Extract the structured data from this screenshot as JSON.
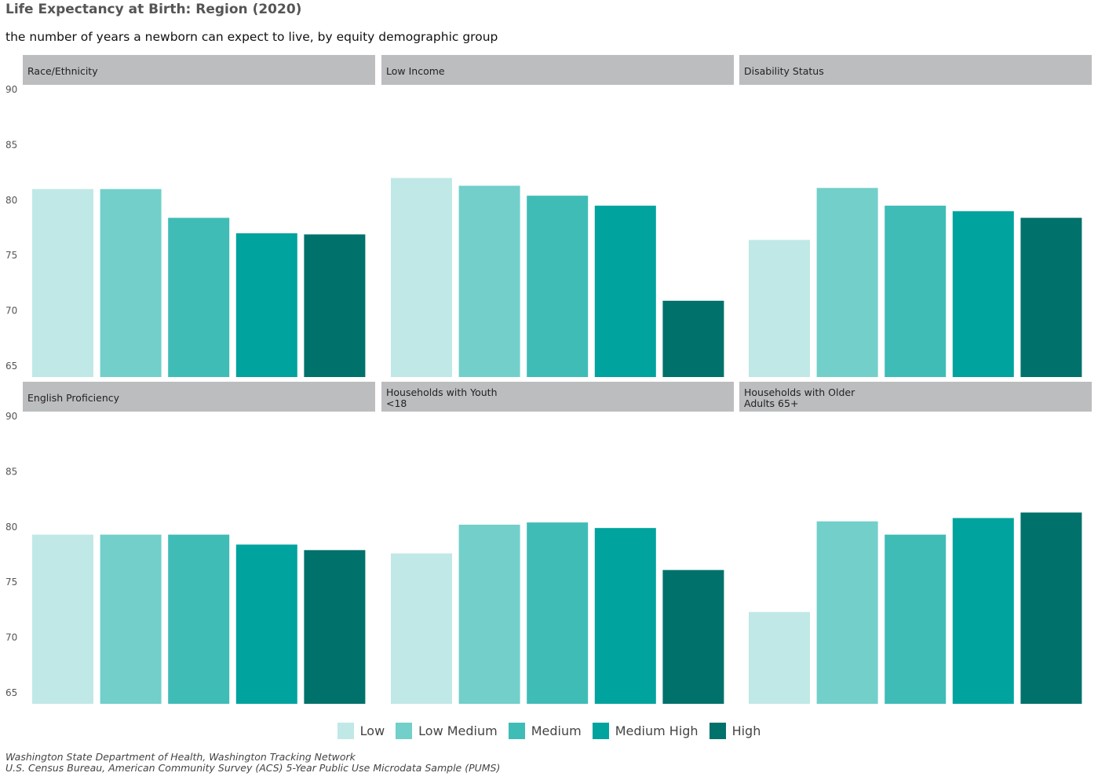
{
  "title": "Life Expectancy at Birth: Region (2020)",
  "subtitle": "the number of years a newborn can expect to live, by equity demographic group",
  "captions": [
    "Washington State Department of Health, Washington Tracking Network",
    "U.S. Census Bureau, American Community Survey (ACS) 5-Year Public Use Microdata Sample (PUMS)"
  ],
  "colors": {
    "Low": "#c0e8e6",
    "Low Medium": "#72cfca",
    "Medium": "#40bcb7",
    "Medium High": "#00a39e",
    "High": "#00716b",
    "strip": "#bcbdbf"
  },
  "chart_data": {
    "type": "bar",
    "categories": [
      "Low",
      "Low Medium",
      "Medium",
      "Medium High",
      "High"
    ],
    "ylim": [
      64,
      90
    ],
    "yticks": [
      65,
      70,
      75,
      80,
      85,
      90
    ],
    "legend": "bottom",
    "grid": false,
    "panels": [
      {
        "label": "Race/Ethnicity",
        "values": [
          81.0,
          81.0,
          78.4,
          77.0,
          76.9
        ]
      },
      {
        "label": "Low Income",
        "values": [
          82.0,
          81.3,
          80.4,
          79.5,
          70.9
        ]
      },
      {
        "label": "Disability Status",
        "values": [
          76.4,
          81.1,
          79.5,
          79.0,
          78.4
        ]
      },
      {
        "label": "English Proficiency",
        "values": [
          79.3,
          79.3,
          79.3,
          78.4,
          77.9
        ]
      },
      {
        "label": "Households with Youth\n<18",
        "values": [
          77.6,
          80.2,
          80.4,
          79.9,
          76.1
        ]
      },
      {
        "label": "Households with Older\nAdults 65+",
        "values": [
          72.3,
          80.5,
          79.3,
          80.8,
          81.3
        ]
      }
    ]
  }
}
